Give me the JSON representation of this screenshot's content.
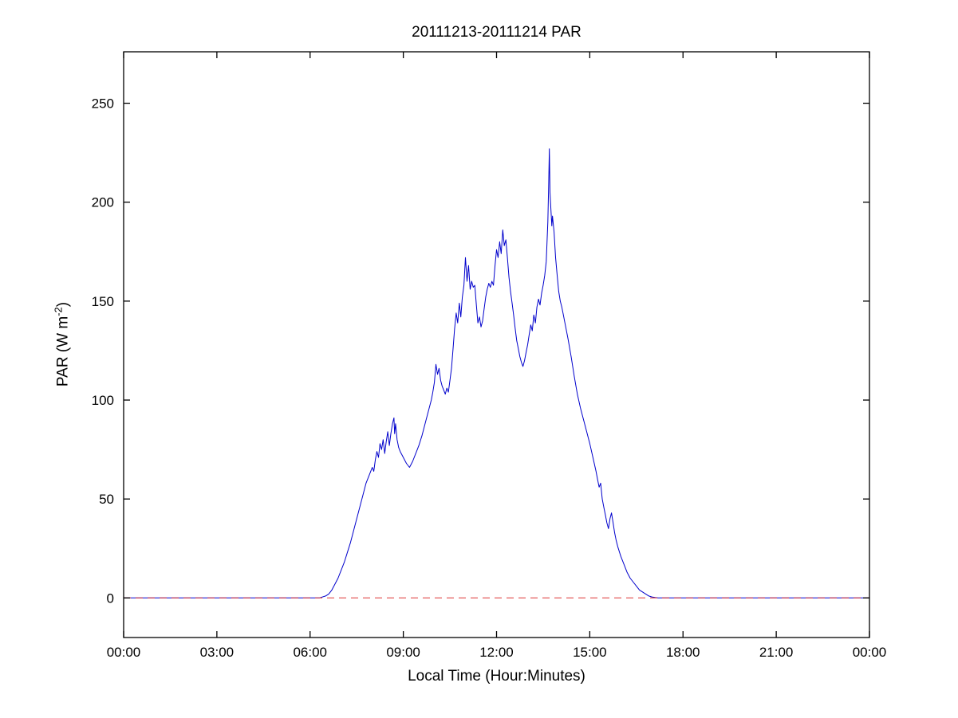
{
  "figure": {
    "background": "#ffffff"
  },
  "labels": {
    "ylabel_pre": "PAR (W m",
    "ylabel_sup": "-2",
    "ylabel_post": ")"
  },
  "colors": {
    "axis": "#000000",
    "background": "#ffffff",
    "par_line": "#0000cc",
    "zero_line": "#dd3333"
  },
  "chart_data": {
    "type": "line",
    "title": "20111213-20111214 PAR",
    "xlabel": "Local Time (Hour:Minutes)",
    "ylabel": "PAR (W m^-2)",
    "xlim": [
      0,
      24
    ],
    "ylim": [
      -20,
      276
    ],
    "grid": false,
    "legend": null,
    "x_tick_values": [
      0,
      3,
      6,
      9,
      12,
      15,
      18,
      21,
      24
    ],
    "x_tick_labels": [
      "00:00",
      "03:00",
      "06:00",
      "09:00",
      "12:00",
      "15:00",
      "18:00",
      "21:00",
      "00:00"
    ],
    "y_tick_values": [
      0,
      50,
      100,
      150,
      200,
      250
    ],
    "y_tick_labels": [
      "0",
      "50",
      "100",
      "150",
      "200",
      "250"
    ],
    "series": [
      {
        "name": "PAR",
        "color": "#0000cc",
        "style": "solid",
        "width": 1,
        "points": [
          [
            0,
            0
          ],
          [
            0.5,
            0
          ],
          [
            1,
            0
          ],
          [
            1.5,
            0
          ],
          [
            2,
            0
          ],
          [
            2.5,
            0
          ],
          [
            3,
            0
          ],
          [
            3.5,
            0
          ],
          [
            4,
            0
          ],
          [
            4.5,
            0
          ],
          [
            5,
            0
          ],
          [
            5.5,
            0
          ],
          [
            6,
            0
          ],
          [
            6.3,
            0
          ],
          [
            6.5,
            1
          ],
          [
            6.6,
            2
          ],
          [
            6.7,
            4
          ],
          [
            6.8,
            7
          ],
          [
            6.9,
            10
          ],
          [
            7.0,
            14
          ],
          [
            7.1,
            18
          ],
          [
            7.2,
            23
          ],
          [
            7.3,
            28
          ],
          [
            7.4,
            34
          ],
          [
            7.5,
            40
          ],
          [
            7.6,
            46
          ],
          [
            7.7,
            52
          ],
          [
            7.8,
            58
          ],
          [
            7.9,
            62
          ],
          [
            8.0,
            66
          ],
          [
            8.05,
            64
          ],
          [
            8.1,
            70
          ],
          [
            8.15,
            74
          ],
          [
            8.2,
            71
          ],
          [
            8.25,
            78
          ],
          [
            8.3,
            75
          ],
          [
            8.35,
            80
          ],
          [
            8.4,
            73
          ],
          [
            8.45,
            79
          ],
          [
            8.5,
            84
          ],
          [
            8.55,
            77
          ],
          [
            8.6,
            83
          ],
          [
            8.65,
            88
          ],
          [
            8.7,
            91
          ],
          [
            8.72,
            83
          ],
          [
            8.75,
            88
          ],
          [
            8.8,
            80
          ],
          [
            8.85,
            76
          ],
          [
            8.9,
            74
          ],
          [
            9.0,
            71
          ],
          [
            9.1,
            68
          ],
          [
            9.2,
            66
          ],
          [
            9.3,
            69
          ],
          [
            9.4,
            73
          ],
          [
            9.5,
            77
          ],
          [
            9.6,
            82
          ],
          [
            9.7,
            88
          ],
          [
            9.8,
            94
          ],
          [
            9.9,
            100
          ],
          [
            9.95,
            104
          ],
          [
            10.0,
            109
          ],
          [
            10.05,
            118
          ],
          [
            10.1,
            113
          ],
          [
            10.15,
            116
          ],
          [
            10.2,
            110
          ],
          [
            10.25,
            107
          ],
          [
            10.3,
            105
          ],
          [
            10.35,
            103
          ],
          [
            10.4,
            106
          ],
          [
            10.45,
            104
          ],
          [
            10.5,
            110
          ],
          [
            10.55,
            116
          ],
          [
            10.6,
            126
          ],
          [
            10.65,
            136
          ],
          [
            10.7,
            144
          ],
          [
            10.75,
            139
          ],
          [
            10.8,
            149
          ],
          [
            10.85,
            142
          ],
          [
            10.9,
            152
          ],
          [
            10.95,
            158
          ],
          [
            11.0,
            172
          ],
          [
            11.05,
            160
          ],
          [
            11.1,
            168
          ],
          [
            11.15,
            156
          ],
          [
            11.2,
            160
          ],
          [
            11.25,
            157
          ],
          [
            11.3,
            158
          ],
          [
            11.35,
            148
          ],
          [
            11.4,
            139
          ],
          [
            11.45,
            142
          ],
          [
            11.5,
            137
          ],
          [
            11.55,
            140
          ],
          [
            11.6,
            146
          ],
          [
            11.65,
            152
          ],
          [
            11.7,
            156
          ],
          [
            11.75,
            159
          ],
          [
            11.8,
            157
          ],
          [
            11.85,
            160
          ],
          [
            11.9,
            158
          ],
          [
            11.95,
            168
          ],
          [
            12.0,
            176
          ],
          [
            12.05,
            172
          ],
          [
            12.1,
            180
          ],
          [
            12.15,
            174
          ],
          [
            12.2,
            186
          ],
          [
            12.25,
            178
          ],
          [
            12.3,
            181
          ],
          [
            12.35,
            172
          ],
          [
            12.4,
            162
          ],
          [
            12.45,
            155
          ],
          [
            12.5,
            149
          ],
          [
            12.55,
            143
          ],
          [
            12.6,
            136
          ],
          [
            12.65,
            130
          ],
          [
            12.7,
            126
          ],
          [
            12.75,
            122
          ],
          [
            12.8,
            119
          ],
          [
            12.85,
            117
          ],
          [
            12.9,
            120
          ],
          [
            12.95,
            124
          ],
          [
            13.0,
            128
          ],
          [
            13.05,
            133
          ],
          [
            13.1,
            138
          ],
          [
            13.15,
            135
          ],
          [
            13.2,
            143
          ],
          [
            13.25,
            139
          ],
          [
            13.3,
            147
          ],
          [
            13.35,
            151
          ],
          [
            13.4,
            148
          ],
          [
            13.45,
            154
          ],
          [
            13.5,
            158
          ],
          [
            13.55,
            163
          ],
          [
            13.6,
            170
          ],
          [
            13.65,
            190
          ],
          [
            13.68,
            210
          ],
          [
            13.7,
            227
          ],
          [
            13.72,
            205
          ],
          [
            13.75,
            196
          ],
          [
            13.78,
            188
          ],
          [
            13.8,
            193
          ],
          [
            13.85,
            185
          ],
          [
            13.9,
            172
          ],
          [
            13.95,
            163
          ],
          [
            14.0,
            155
          ],
          [
            14.05,
            150
          ],
          [
            14.1,
            147
          ],
          [
            14.15,
            143
          ],
          [
            14.2,
            139
          ],
          [
            14.3,
            131
          ],
          [
            14.4,
            122
          ],
          [
            14.5,
            112
          ],
          [
            14.6,
            103
          ],
          [
            14.7,
            96
          ],
          [
            14.8,
            90
          ],
          [
            14.9,
            84
          ],
          [
            15.0,
            78
          ],
          [
            15.1,
            71
          ],
          [
            15.2,
            64
          ],
          [
            15.25,
            60
          ],
          [
            15.3,
            56
          ],
          [
            15.35,
            58
          ],
          [
            15.4,
            50
          ],
          [
            15.45,
            46
          ],
          [
            15.5,
            42
          ],
          [
            15.55,
            38
          ],
          [
            15.6,
            35
          ],
          [
            15.65,
            40
          ],
          [
            15.7,
            43
          ],
          [
            15.75,
            38
          ],
          [
            15.8,
            33
          ],
          [
            15.85,
            29
          ],
          [
            15.9,
            26
          ],
          [
            16.0,
            21
          ],
          [
            16.1,
            17
          ],
          [
            16.2,
            13
          ],
          [
            16.3,
            10
          ],
          [
            16.4,
            8
          ],
          [
            16.5,
            6
          ],
          [
            16.6,
            4
          ],
          [
            16.7,
            3
          ],
          [
            16.8,
            2
          ],
          [
            16.9,
            1
          ],
          [
            17.0,
            0.5
          ],
          [
            17.1,
            0.2
          ],
          [
            17.2,
            0
          ],
          [
            17.5,
            0
          ],
          [
            18,
            0
          ],
          [
            18.5,
            0
          ],
          [
            19,
            0
          ],
          [
            19.5,
            0
          ],
          [
            20,
            0
          ],
          [
            20.5,
            0
          ],
          [
            21,
            0
          ],
          [
            21.5,
            0
          ],
          [
            22,
            0
          ],
          [
            22.5,
            0
          ],
          [
            23,
            0
          ],
          [
            23.5,
            0
          ],
          [
            24,
            0
          ]
        ]
      },
      {
        "name": "zero-reference",
        "color": "#dd3333",
        "style": "dashed",
        "width": 1,
        "points": [
          [
            0,
            0
          ],
          [
            24,
            0
          ]
        ]
      }
    ]
  }
}
